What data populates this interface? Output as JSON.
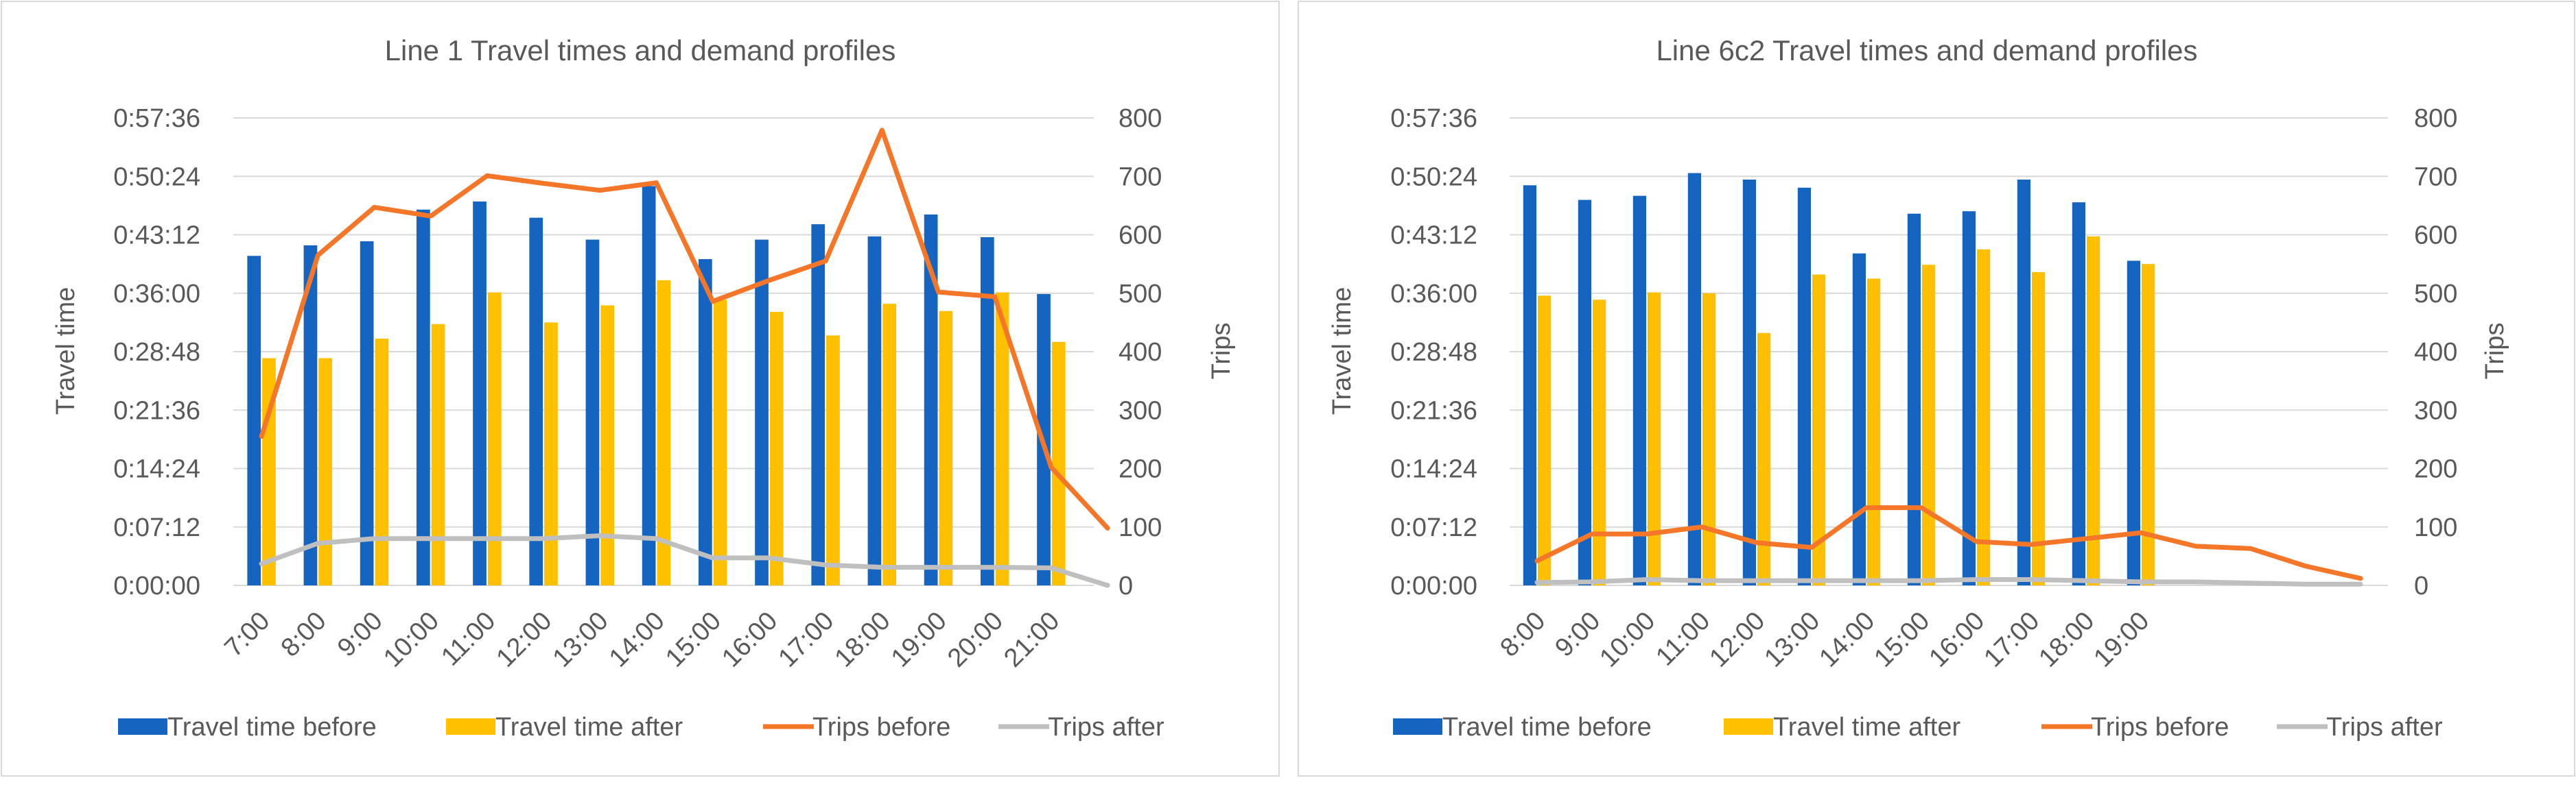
{
  "colors": {
    "travel_before": "#1565C0",
    "travel_after": "#FFC000",
    "trips_before": "#F47628",
    "trips_after": "#BFBFBF",
    "grid": "#D9D9D9",
    "text": "#595959",
    "border": "#D9D9D9"
  },
  "chart_data": [
    {
      "type": "bar",
      "title": "Line 1 Travel times and demand profiles",
      "ylabel": "Travel time",
      "y2label": "Trips",
      "left_ticks": [
        "0:00:00",
        "0:07:12",
        "0:14:24",
        "0:21:36",
        "0:28:48",
        "0:36:00",
        "0:43:12",
        "0:50:24",
        "0:57:36"
      ],
      "ylim_minutes": [
        0,
        57.6
      ],
      "right_ticks": [
        "0",
        "100",
        "200",
        "300",
        "400",
        "500",
        "600",
        "700",
        "800"
      ],
      "y2lim": [
        0,
        800
      ],
      "categories": [
        "7:00",
        "8:00",
        "9:00",
        "10:00",
        "11:00",
        "12:00",
        "13:00",
        "14:00",
        "15:00",
        "16:00",
        "17:00",
        "18:00",
        "19:00",
        "20:00",
        "21:00"
      ],
      "extra_slots": 1,
      "bar_series": [
        {
          "name": "Travel time before",
          "values_minutes": [
            40.6,
            41.9,
            42.4,
            46.3,
            47.3,
            45.3,
            42.6,
            49.2,
            40.2,
            42.6,
            44.5,
            43.0,
            45.7,
            42.9,
            35.9
          ]
        },
        {
          "name": "Travel time after",
          "values_minutes": [
            28.0,
            28.0,
            30.4,
            32.2,
            36.1,
            32.4,
            34.5,
            37.6,
            35.2,
            33.7,
            30.8,
            34.7,
            33.8,
            36.1,
            30.0
          ]
        }
      ],
      "line_series": [
        {
          "name": "Trips before",
          "values": [
            255,
            565,
            647,
            632,
            701,
            688,
            676,
            689,
            486,
            522,
            555,
            779,
            502,
            494,
            202,
            98
          ]
        },
        {
          "name": "Trips after",
          "values": [
            37,
            72,
            80,
            80,
            80,
            80,
            85,
            80,
            47,
            47,
            35,
            31,
            31,
            31,
            30,
            0
          ]
        }
      ],
      "legend": [
        "Travel time before",
        "Travel time after",
        "Trips before",
        "Trips after"
      ],
      "legend_position": "bottom",
      "grid": true
    },
    {
      "type": "bar",
      "title": "Line 6c2 Travel times and demand profiles",
      "ylabel": "Travel time",
      "y2label": "Trips",
      "left_ticks": [
        "0:00:00",
        "0:07:12",
        "0:14:24",
        "0:21:36",
        "0:28:48",
        "0:36:00",
        "0:43:12",
        "0:50:24",
        "0:57:36"
      ],
      "ylim_minutes": [
        0,
        57.6
      ],
      "right_ticks": [
        "0",
        "100",
        "200",
        "300",
        "400",
        "500",
        "600",
        "700",
        "800"
      ],
      "y2lim": [
        0,
        800
      ],
      "categories": [
        "8:00",
        "9:00",
        "10:00",
        "11:00",
        "12:00",
        "13:00",
        "14:00",
        "15:00",
        "16:00",
        "17:00",
        "18:00",
        "19:00"
      ],
      "extra_slots": 3,
      "bar_series": [
        {
          "name": "Travel time before",
          "values_minutes": [
            49.3,
            47.5,
            48.0,
            50.8,
            50.0,
            49.0,
            40.9,
            45.8,
            46.1,
            50.0,
            47.2,
            40.0
          ]
        },
        {
          "name": "Travel time after",
          "values_minutes": [
            35.7,
            35.2,
            36.1,
            36.0,
            31.1,
            38.3,
            37.8,
            39.5,
            41.4,
            38.6,
            43.0,
            39.6
          ]
        }
      ],
      "line_series": [
        {
          "name": "Trips before",
          "values": [
            42,
            88,
            88,
            100,
            73,
            65,
            133,
            133,
            75,
            70,
            80,
            90,
            67,
            63,
            33,
            12
          ]
        },
        {
          "name": "Trips after",
          "values": [
            5,
            6,
            10,
            8,
            8,
            8,
            8,
            8,
            10,
            10,
            8,
            6,
            6,
            4,
            2,
            2
          ]
        }
      ],
      "legend": [
        "Travel time before",
        "Travel time after",
        "Trips before",
        "Trips after"
      ],
      "legend_position": "bottom",
      "grid": true
    }
  ]
}
